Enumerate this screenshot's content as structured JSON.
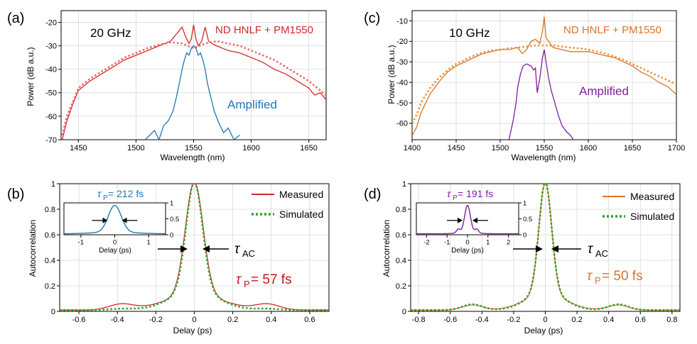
{
  "colors": {
    "red": "#d62728",
    "red_dot": "#e86a6a",
    "blue": "#1f77b4",
    "orange": "#d9742b",
    "orange_dot": "#e8943a",
    "purple": "#7b1fa2",
    "green": "#2ca02c",
    "red_text": "#c0161b"
  },
  "chart_data": [
    {
      "type": "line",
      "panel": "(a)",
      "rate_label": "20 GHz",
      "xlabel": "Wavelength (nm)",
      "ylabel": "Power (dB a.u.)",
      "xlim": [
        1435,
        1665
      ],
      "ylim": [
        -70,
        -15
      ],
      "xticks": [
        1450,
        1500,
        1550,
        1600,
        1650
      ],
      "yticks": [
        -70,
        -60,
        -50,
        -40,
        -30,
        -20
      ],
      "grid": true,
      "annotations": {
        "top": "ND HNLF + PM1550",
        "amp": "Amplified"
      },
      "series": [
        {
          "name": "ND HNLF + PM1550 measured",
          "style": "solid",
          "color": "red",
          "x": [
            1436,
            1440,
            1445,
            1450,
            1460,
            1470,
            1480,
            1490,
            1500,
            1510,
            1520,
            1530,
            1535,
            1540,
            1543,
            1546,
            1548,
            1550,
            1552,
            1554,
            1557,
            1560,
            1563,
            1566,
            1570,
            1580,
            1590,
            1600,
            1610,
            1620,
            1630,
            1640,
            1650,
            1655,
            1660,
            1665
          ],
          "y": [
            -70,
            -62,
            -55,
            -49,
            -45,
            -42,
            -39,
            -36,
            -34,
            -32,
            -30,
            -28,
            -25,
            -22,
            -26,
            -29,
            -27,
            -21,
            -27,
            -30,
            -28,
            -22,
            -28,
            -29,
            -30,
            -32,
            -33,
            -35,
            -37,
            -40,
            -42,
            -45,
            -48,
            -51,
            -50,
            -53
          ]
        },
        {
          "name": "ND HNLF + PM1550 simulated",
          "style": "dotted",
          "color": "red_dot",
          "x": [
            1436,
            1440,
            1445,
            1450,
            1460,
            1470,
            1480,
            1490,
            1500,
            1510,
            1520,
            1530,
            1540,
            1550,
            1560,
            1570,
            1580,
            1590,
            1600,
            1610,
            1620,
            1630,
            1640,
            1650,
            1660,
            1665
          ],
          "y": [
            -68,
            -60,
            -54,
            -48,
            -44,
            -41,
            -38,
            -35,
            -33,
            -31,
            -29.5,
            -28.5,
            -29,
            -31,
            -29,
            -28,
            -29,
            -30,
            -32,
            -34,
            -36,
            -39,
            -42,
            -45,
            -49,
            -51
          ]
        },
        {
          "name": "Amplified",
          "style": "solid",
          "color": "blue",
          "x": [
            1508,
            1512,
            1516,
            1520,
            1524,
            1528,
            1532,
            1535,
            1538,
            1540,
            1542,
            1544,
            1546,
            1548,
            1550,
            1552,
            1554,
            1556,
            1558,
            1560,
            1562,
            1565,
            1568,
            1572,
            1576,
            1580,
            1585,
            1590
          ],
          "y": [
            -70,
            -68,
            -66,
            -70,
            -64,
            -62,
            -58,
            -52,
            -45,
            -40,
            -36,
            -33,
            -34,
            -31,
            -30,
            -31,
            -34,
            -33,
            -36,
            -40,
            -46,
            -52,
            -58,
            -63,
            -67,
            -65,
            -70,
            -68
          ]
        }
      ]
    },
    {
      "type": "line",
      "panel": "(c)",
      "rate_label": "10 GHz",
      "xlabel": "Wavelength (nm)",
      "ylabel": "Power (dB a.u.)",
      "xlim": [
        1400,
        1700
      ],
      "ylim": [
        -68,
        -5
      ],
      "xticks": [
        1400,
        1450,
        1500,
        1550,
        1600,
        1650,
        1700
      ],
      "yticks": [
        -60,
        -50,
        -40,
        -30,
        -20,
        -10
      ],
      "grid": true,
      "annotations": {
        "top": "ND HNLF + PM1550",
        "amp": "Amplified"
      },
      "series": [
        {
          "name": "ND HNLF + PM1550 measured",
          "style": "solid",
          "color": "orange",
          "x": [
            1400,
            1405,
            1410,
            1420,
            1430,
            1440,
            1450,
            1460,
            1470,
            1480,
            1490,
            1500,
            1510,
            1520,
            1525,
            1530,
            1535,
            1540,
            1545,
            1548,
            1550,
            1552,
            1555,
            1560,
            1570,
            1580,
            1590,
            1600,
            1610,
            1620,
            1630,
            1640,
            1650,
            1660,
            1670,
            1680,
            1690,
            1700
          ],
          "y": [
            -66,
            -62,
            -55,
            -46,
            -40,
            -35,
            -32,
            -30,
            -28,
            -26,
            -25,
            -24,
            -24,
            -23,
            -26,
            -24,
            -20,
            -19,
            -21,
            -15,
            -8,
            -18,
            -20,
            -23,
            -24,
            -25,
            -25,
            -25,
            -26,
            -27,
            -28,
            -30,
            -32,
            -35,
            -37,
            -40,
            -42,
            -46
          ]
        },
        {
          "name": "ND HNLF + PM1550 simulated",
          "style": "dotted",
          "color": "orange_dot",
          "x": [
            1400,
            1405,
            1410,
            1420,
            1430,
            1440,
            1450,
            1460,
            1470,
            1480,
            1490,
            1500,
            1510,
            1520,
            1530,
            1540,
            1550,
            1560,
            1570,
            1580,
            1590,
            1600,
            1610,
            1620,
            1630,
            1640,
            1650,
            1660,
            1670,
            1680,
            1690,
            1700
          ],
          "y": [
            -60,
            -56,
            -50,
            -43,
            -38,
            -34,
            -31,
            -29,
            -27,
            -25.5,
            -24.5,
            -24,
            -23.5,
            -23,
            -22.5,
            -22,
            -22,
            -22,
            -22.5,
            -23,
            -23.5,
            -24,
            -25,
            -26,
            -27.5,
            -29,
            -31,
            -33,
            -35,
            -37,
            -39,
            -41
          ]
        },
        {
          "name": "Amplified",
          "style": "solid",
          "color": "purple",
          "x": [
            1510,
            1512,
            1515,
            1518,
            1520,
            1523,
            1526,
            1530,
            1535,
            1538,
            1540,
            1542,
            1545,
            1548,
            1550,
            1552,
            1555,
            1558,
            1562,
            1566,
            1570,
            1575,
            1580,
            1583
          ],
          "y": [
            -68,
            -64,
            -58,
            -50,
            -42,
            -36,
            -32,
            -31,
            -32,
            -34,
            -33,
            -45,
            -38,
            -28,
            -24,
            -30,
            -38,
            -44,
            -50,
            -56,
            -61,
            -64,
            -66,
            -68
          ]
        }
      ]
    },
    {
      "type": "line",
      "panel": "(b)",
      "xlabel": "Delay (ps)",
      "ylabel": "Autocorrelation",
      "xlim": [
        -0.7,
        0.7
      ],
      "ylim": [
        0,
        1.0
      ],
      "xticks": [
        -0.6,
        -0.4,
        -0.2,
        0.0,
        0.2,
        0.4,
        0.6
      ],
      "yticks": [
        0.0,
        0.2,
        0.4,
        0.6,
        0.8,
        1.0
      ],
      "grid": true,
      "legend": [
        "Measured",
        "Simulated"
      ],
      "legend_position": "top-right",
      "tau_ac_label": "τ",
      "tau_ac_sub": "AC",
      "tau_p_label": "τ",
      "tau_p_sub": "P",
      "tau_p_value": " = 57 fs",
      "series": [
        {
          "name": "Measured",
          "style": "solid",
          "color": "red",
          "kind": "measured",
          "fwhm": 0.057,
          "side_lobe": 0.045,
          "side_pos": 0.38
        },
        {
          "name": "Simulated",
          "style": "dotted",
          "color": "green",
          "kind": "simulated",
          "fwhm": 0.054,
          "side_lobe": 0.01,
          "side_pos": 0.38
        }
      ],
      "inset": {
        "xlim": [
          -1.5,
          1.5
        ],
        "ylim": [
          0,
          1.0
        ],
        "xticks": [
          -1,
          0,
          1
        ],
        "yticks": [
          0.0,
          0.5,
          1.0
        ],
        "xlabel": "Delay (ps)",
        "title_sym": "τ",
        "title_sub": "P",
        "title_value": " = 212 fs",
        "color": "blue",
        "fwhm": 0.3
      }
    },
    {
      "type": "line",
      "panel": "(d)",
      "xlabel": "Delay (ps)",
      "ylabel": "Autocorrelation",
      "xlim": [
        -0.85,
        0.85
      ],
      "ylim": [
        0,
        1.0
      ],
      "xticks": [
        -0.8,
        -0.6,
        -0.4,
        -0.2,
        0.0,
        0.2,
        0.4,
        0.6,
        0.8
      ],
      "yticks": [
        0.0,
        0.2,
        0.4,
        0.6,
        0.8,
        1.0
      ],
      "grid": true,
      "legend": [
        "Measured",
        "Simulated"
      ],
      "legend_position": "top-right",
      "tau_ac_label": "τ",
      "tau_ac_sub": "AC",
      "tau_p_label": "τ",
      "tau_p_sub": "P",
      "tau_p_value": " = 50 fs",
      "series": [
        {
          "name": "Measured",
          "style": "solid",
          "color": "orange",
          "kind": "measured",
          "fwhm": 0.05,
          "side_lobe": 0.04,
          "side_pos": 0.46
        },
        {
          "name": "Simulated",
          "style": "dotted",
          "color": "green",
          "kind": "simulated",
          "fwhm": 0.05,
          "side_lobe": 0.045,
          "side_pos": 0.46
        }
      ],
      "inset": {
        "xlim": [
          -2.5,
          2.5
        ],
        "ylim": [
          0,
          1.0
        ],
        "xticks": [
          -2,
          -1,
          0,
          1,
          2
        ],
        "yticks": [
          0.0,
          0.5,
          1.0
        ],
        "xlabel": "Delay (ps)",
        "title_sym": "τ",
        "title_sub": "P",
        "title_value": " = 191 fs",
        "color": "purple",
        "fwhm": 0.22
      }
    }
  ]
}
